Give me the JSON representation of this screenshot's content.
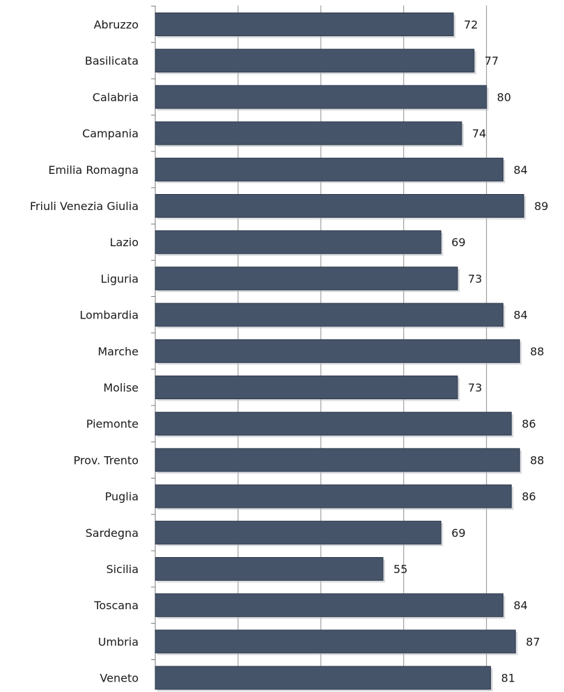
{
  "chart_data": {
    "type": "bar",
    "orientation": "horizontal",
    "title": "",
    "xlabel": "",
    "ylabel": "",
    "categories": [
      "Abruzzo",
      "Basilicata",
      "Calabria",
      "Campania",
      "Emilia Romagna",
      "Friuli Venezia Giulia",
      "Lazio",
      "Liguria",
      "Lombardia",
      "Marche",
      "Molise",
      "Piemonte",
      "Prov. Trento",
      "Puglia",
      "Sardegna",
      "Sicilia",
      "Toscana",
      "Umbria",
      "Veneto"
    ],
    "values": [
      72,
      77,
      80,
      74,
      84,
      89,
      69,
      73,
      84,
      88,
      73,
      86,
      88,
      86,
      69,
      55,
      84,
      87,
      81
    ],
    "xlim": [
      0,
      100
    ],
    "grid": true,
    "data_labels": true,
    "colors": {
      "bar": "#465469",
      "shadow": "#b8bcc2",
      "grid": "#8c8c8c"
    }
  }
}
